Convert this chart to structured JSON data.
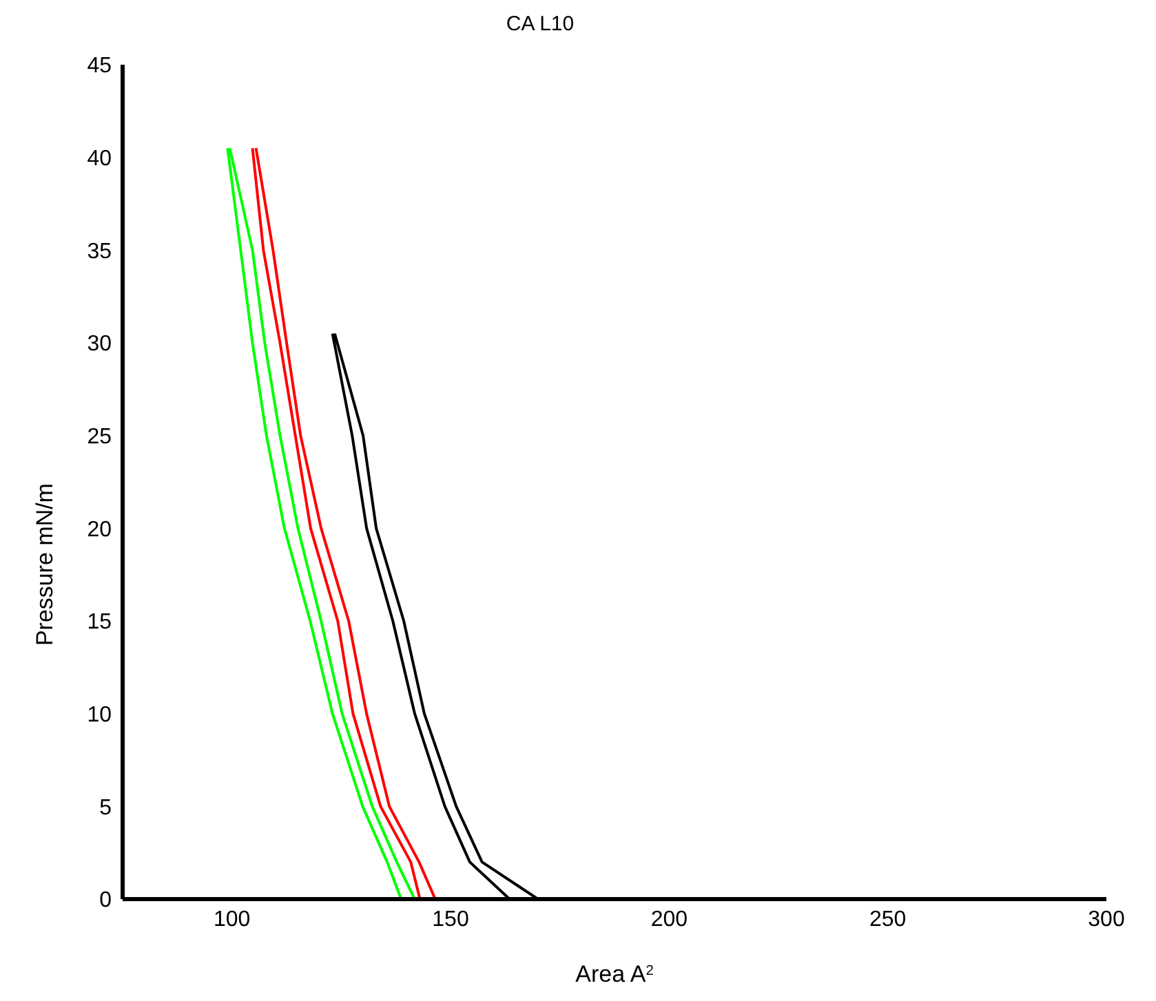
{
  "chart_data": {
    "type": "line",
    "title": "CA L10",
    "xlabel": "Area A$^{2}$",
    "ylabel": "Pressure mN/m",
    "xlim": [
      75,
      300
    ],
    "xticks": [
      100,
      150,
      200,
      250,
      300
    ],
    "ylim": [
      0,
      45
    ],
    "yticks": [
      0,
      5,
      10,
      15,
      20,
      25,
      30,
      35,
      40,
      45
    ],
    "marker": "none",
    "line_style": "solid",
    "series": [
      {
        "color": "#00ff00",
        "x": [
          99,
          102,
          104.7,
          107.9,
          112,
          117.9,
          123,
          129.9,
          135.5,
          138.7,
          233,
          141.8,
          137.7,
          132.1,
          125.2,
          120.4,
          115.1,
          111,
          107.5,
          104.7,
          99.5
        ],
        "values": [
          40.5,
          35,
          30,
          25,
          20,
          15,
          10,
          5,
          2,
          0,
          0,
          0,
          2,
          5,
          10,
          15,
          20,
          25,
          30,
          35,
          40.5
        ]
      },
      {
        "color": "#ff0000",
        "x": [
          104.7,
          107.2,
          111,
          114.5,
          118,
          124.2,
          127.7,
          134,
          140.9,
          143,
          246,
          146.5,
          142.8,
          136,
          130.8,
          126.7,
          120.4,
          115.7,
          112.5,
          109.4,
          105.5
        ],
        "values": [
          40.5,
          35,
          30,
          25,
          20,
          15,
          10,
          5,
          2,
          0,
          0,
          0,
          2,
          5,
          10,
          15,
          20,
          25,
          30,
          35,
          40.5
        ]
      },
      {
        "color": "#000000",
        "x": [
          123,
          127.5,
          130.8,
          136.8,
          141.8,
          148.7,
          154.4,
          163.5,
          216,
          170,
          157.2,
          151.3,
          144,
          139.3,
          133,
          130,
          123.5
        ],
        "values": [
          30.5,
          25,
          20,
          15,
          10,
          5,
          2,
          0,
          0,
          0,
          2,
          5,
          10,
          15,
          20,
          25,
          30.5
        ]
      }
    ]
  }
}
